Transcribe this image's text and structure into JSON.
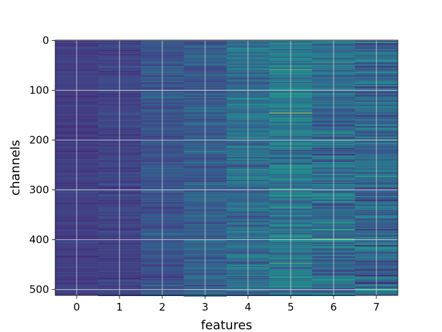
{
  "chart_data": {
    "type": "heatmap",
    "title": "",
    "xlabel": "features",
    "ylabel": "channels",
    "x_ticks": [
      "0",
      "1",
      "2",
      "3",
      "4",
      "5",
      "6",
      "7"
    ],
    "y_ticks": [
      "0",
      "100",
      "200",
      "300",
      "400",
      "500"
    ],
    "n_columns": 8,
    "n_rows": 512,
    "xlim": [
      -0.5,
      7.5
    ],
    "ylim": [
      511.5,
      -0.5
    ],
    "grid": true,
    "colormap": "viridis",
    "column_mean_level": [
      0.18,
      0.2,
      0.26,
      0.3,
      0.36,
      0.4,
      0.36,
      0.34
    ],
    "bright_bands": [
      {
        "column": 4,
        "row": 12,
        "value": 0.85
      },
      {
        "column": 4,
        "row": 260,
        "value": 0.65
      },
      {
        "column": 4,
        "row": 476,
        "value": 0.6
      },
      {
        "column": 5,
        "row": 59,
        "value": 0.8
      },
      {
        "column": 5,
        "row": 77,
        "value": 0.85
      },
      {
        "column": 5,
        "row": 146,
        "value": 0.95
      },
      {
        "column": 5,
        "row": 343,
        "value": 0.85
      },
      {
        "column": 5,
        "row": 447,
        "value": 0.75
      },
      {
        "column": 6,
        "row": 28,
        "value": 0.8
      },
      {
        "column": 6,
        "row": 44,
        "value": 0.7
      },
      {
        "column": 6,
        "row": 200,
        "value": 0.7
      },
      {
        "column": 6,
        "row": 398,
        "value": 0.75
      },
      {
        "column": 7,
        "row": 10,
        "value": 0.7
      },
      {
        "column": 7,
        "row": 226,
        "value": 0.7
      }
    ]
  }
}
